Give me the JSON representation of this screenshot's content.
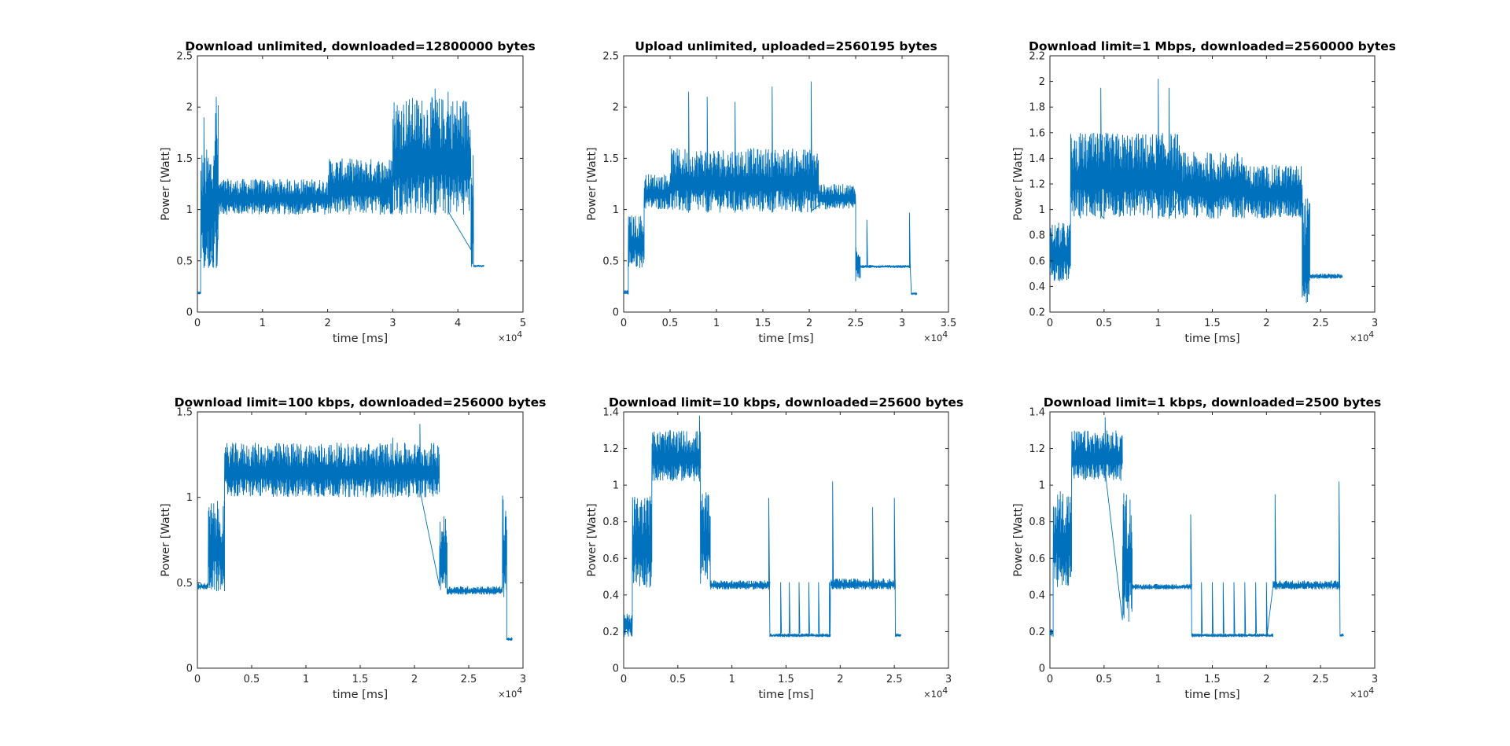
{
  "figure": {
    "background": "#ffffff",
    "line_color": "#0072BD"
  },
  "chart_data": [
    {
      "type": "line",
      "title": "Download unlimited, downloaded=12800000 bytes",
      "xlabel": "time [ms]",
      "ylabel": "Power [Watt]",
      "x_exponent": "4",
      "xlim": [
        0,
        50000
      ],
      "ylim": [
        0,
        2.5
      ],
      "xticks": [
        0,
        10000,
        20000,
        30000,
        40000,
        50000
      ],
      "xtick_labels": [
        "0",
        "1",
        "2",
        "3",
        "4",
        "5"
      ],
      "yticks": [
        0,
        0.5,
        1,
        1.5,
        2,
        2.5
      ],
      "ytick_labels": [
        "0",
        "0.5",
        "1",
        "1.5",
        "2",
        "2.5"
      ],
      "grid": false,
      "segments": [
        {
          "from": 0,
          "to": 500,
          "low": 0.17,
          "high": 0.2
        },
        {
          "from": 500,
          "to": 2500,
          "low": 0.43,
          "high": 1.6,
          "spikes": [
            [
              1000,
              1.9
            ],
            [
              1700,
              1.3
            ]
          ]
        },
        {
          "from": 2500,
          "to": 3200,
          "low": 0.43,
          "high": 2.05,
          "spikes": [
            [
              2900,
              2.1
            ]
          ]
        },
        {
          "from": 3200,
          "to": 20000,
          "low": 0.95,
          "high": 1.3
        },
        {
          "from": 20000,
          "to": 30000,
          "low": 0.95,
          "high": 1.5
        },
        {
          "from": 30000,
          "to": 42000,
          "low": 0.95,
          "high": 2.1,
          "spikes": [
            [
              36500,
              2.18
            ],
            [
              38500,
              2.15
            ]
          ]
        },
        {
          "from": 42000,
          "to": 42400,
          "low": 0.44,
          "high": 1.55
        },
        {
          "from": 42400,
          "to": 44000,
          "low": 0.44,
          "high": 0.46
        }
      ]
    },
    {
      "type": "line",
      "title": "Upload unlimited, uploaded=2560195 bytes",
      "xlabel": "time [ms]",
      "ylabel": "Power [Watt]",
      "x_exponent": "4",
      "xlim": [
        0,
        35000
      ],
      "ylim": [
        0,
        2.5
      ],
      "xticks": [
        0,
        5000,
        10000,
        15000,
        20000,
        25000,
        30000,
        35000
      ],
      "xtick_labels": [
        "0",
        "0.5",
        "1",
        "1.5",
        "2",
        "2.5",
        "3",
        "3.5"
      ],
      "yticks": [
        0,
        0.5,
        1,
        1.5,
        2,
        2.5
      ],
      "ytick_labels": [
        "0",
        "0.5",
        "1",
        "1.5",
        "2",
        "2.5"
      ],
      "grid": false,
      "segments": [
        {
          "from": 0,
          "to": 500,
          "low": 0.17,
          "high": 0.22
        },
        {
          "from": 500,
          "to": 2200,
          "low": 0.43,
          "high": 0.95
        },
        {
          "from": 2200,
          "to": 5000,
          "low": 1.0,
          "high": 1.35
        },
        {
          "from": 5000,
          "to": 21000,
          "low": 0.97,
          "high": 1.6,
          "spikes": [
            [
              7000,
              2.15
            ],
            [
              9000,
              2.1
            ],
            [
              12000,
              2.05
            ],
            [
              16000,
              2.2
            ],
            [
              20200,
              2.25
            ]
          ]
        },
        {
          "from": 21000,
          "to": 25000,
          "low": 1.0,
          "high": 1.25
        },
        {
          "from": 25000,
          "to": 25500,
          "low": 0.3,
          "high": 0.7
        },
        {
          "from": 25500,
          "to": 30900,
          "low": 0.43,
          "high": 0.46,
          "spikes": [
            [
              26200,
              0.9
            ],
            [
              30800,
              0.97
            ]
          ]
        },
        {
          "from": 31000,
          "to": 31600,
          "low": 0.17,
          "high": 0.19
        }
      ]
    },
    {
      "type": "line",
      "title": "Download limit=1 Mbps, downloaded=2560000 bytes",
      "xlabel": "time [ms]",
      "ylabel": "Power [Watt]",
      "x_exponent": "4",
      "xlim": [
        0,
        30000
      ],
      "ylim": [
        0.2,
        2.2
      ],
      "xticks": [
        0,
        5000,
        10000,
        15000,
        20000,
        25000,
        30000
      ],
      "xtick_labels": [
        "0",
        "0.5",
        "1",
        "1.5",
        "2",
        "2.5",
        "3"
      ],
      "yticks": [
        0.2,
        0.4,
        0.6,
        0.8,
        1,
        1.2,
        1.4,
        1.6,
        1.8,
        2,
        2.2
      ],
      "ytick_labels": [
        "0.2",
        "0.4",
        "0.6",
        "0.8",
        "1",
        "1.2",
        "1.4",
        "1.6",
        "1.8",
        "2",
        "2.2"
      ],
      "grid": false,
      "segments": [
        {
          "from": 0,
          "to": 1900,
          "low": 0.44,
          "high": 0.9
        },
        {
          "from": 1900,
          "to": 5000,
          "low": 0.93,
          "high": 1.6,
          "spikes": [
            [
              4700,
              1.95
            ]
          ]
        },
        {
          "from": 5000,
          "to": 12000,
          "low": 0.93,
          "high": 1.6,
          "spikes": [
            [
              10000,
              2.02
            ],
            [
              11000,
              1.95
            ]
          ]
        },
        {
          "from": 12000,
          "to": 18000,
          "low": 0.93,
          "high": 1.45
        },
        {
          "from": 18000,
          "to": 23300,
          "low": 0.93,
          "high": 1.35
        },
        {
          "from": 23300,
          "to": 24000,
          "low": 0.22,
          "high": 1.1
        },
        {
          "from": 24000,
          "to": 27000,
          "low": 0.46,
          "high": 0.5
        }
      ]
    },
    {
      "type": "line",
      "title": "Download limit=100 kbps, downloaded=256000 bytes",
      "xlabel": "time [ms]",
      "ylabel": "Power [Watt]",
      "x_exponent": "4",
      "xlim": [
        0,
        30000
      ],
      "ylim": [
        0,
        1.5
      ],
      "xticks": [
        0,
        5000,
        10000,
        15000,
        20000,
        25000,
        30000
      ],
      "xtick_labels": [
        "0",
        "0.5",
        "1",
        "1.5",
        "2",
        "2.5",
        "3"
      ],
      "yticks": [
        0,
        0.5,
        1,
        1.5
      ],
      "ytick_labels": [
        "0",
        "0.5",
        "1",
        "1.5"
      ],
      "grid": false,
      "segments": [
        {
          "from": 0,
          "to": 1000,
          "low": 0.46,
          "high": 0.5
        },
        {
          "from": 1000,
          "to": 2500,
          "low": 0.44,
          "high": 0.98
        },
        {
          "from": 2500,
          "to": 22300,
          "low": 1.0,
          "high": 1.32,
          "spikes": [
            [
              18000,
              1.35
            ],
            [
              20500,
              1.43
            ]
          ]
        },
        {
          "from": 22300,
          "to": 23000,
          "low": 0.45,
          "high": 0.9
        },
        {
          "from": 23000,
          "to": 28100,
          "low": 0.43,
          "high": 0.48
        },
        {
          "from": 28100,
          "to": 28500,
          "low": 0.4,
          "high": 1.02
        },
        {
          "from": 28500,
          "to": 29000,
          "low": 0.16,
          "high": 0.18
        }
      ]
    },
    {
      "type": "line",
      "title": "Download limit=10 kbps, downloaded=25600 bytes",
      "xlabel": "time [ms]",
      "ylabel": "Power [Watt]",
      "x_exponent": "4",
      "xlim": [
        0,
        30000
      ],
      "ylim": [
        0,
        1.4
      ],
      "xticks": [
        0,
        5000,
        10000,
        15000,
        20000,
        25000,
        30000
      ],
      "xtick_labels": [
        "0",
        "0.5",
        "1",
        "1.5",
        "2",
        "2.5",
        "3"
      ],
      "yticks": [
        0,
        0.2,
        0.4,
        0.6,
        0.8,
        1,
        1.2,
        1.4
      ],
      "ytick_labels": [
        "0",
        "0.2",
        "0.4",
        "0.6",
        "0.8",
        "1",
        "1.2",
        "1.4"
      ],
      "grid": false,
      "segments": [
        {
          "from": 0,
          "to": 800,
          "low": 0.17,
          "high": 0.3
        },
        {
          "from": 800,
          "to": 2600,
          "low": 0.44,
          "high": 0.95
        },
        {
          "from": 2600,
          "to": 7100,
          "low": 1.02,
          "high": 1.3,
          "spikes": [
            [
              7000,
              1.38
            ]
          ]
        },
        {
          "from": 7100,
          "to": 8000,
          "low": 0.45,
          "high": 0.97
        },
        {
          "from": 8000,
          "to": 13500,
          "low": 0.43,
          "high": 0.48,
          "spikes": [
            [
              13400,
              0.93
            ]
          ]
        },
        {
          "from": 13500,
          "to": 19100,
          "low": 0.17,
          "high": 0.19,
          "spikes": [
            [
              14500,
              0.47
            ],
            [
              15300,
              0.47
            ],
            [
              16200,
              0.47
            ],
            [
              17100,
              0.47
            ],
            [
              18000,
              0.47
            ],
            [
              19000,
              0.47
            ]
          ]
        },
        {
          "from": 19100,
          "to": 25100,
          "low": 0.43,
          "high": 0.49,
          "spikes": [
            [
              19300,
              1.02
            ],
            [
              23000,
              0.88
            ],
            [
              25000,
              0.93
            ]
          ]
        },
        {
          "from": 25100,
          "to": 25600,
          "low": 0.17,
          "high": 0.19
        }
      ]
    },
    {
      "type": "line",
      "title": "Download limit=1 kbps, downloaded=2500 bytes",
      "xlabel": "time [ms]",
      "ylabel": "Power [Watt]",
      "x_exponent": "4",
      "xlim": [
        0,
        30000
      ],
      "ylim": [
        0,
        1.4
      ],
      "xticks": [
        0,
        5000,
        10000,
        15000,
        20000,
        25000,
        30000
      ],
      "xtick_labels": [
        "0",
        "0.5",
        "1",
        "1.5",
        "2",
        "2.5",
        "3"
      ],
      "yticks": [
        0,
        0.2,
        0.4,
        0.6,
        0.8,
        1,
        1.2,
        1.4
      ],
      "ytick_labels": [
        "0",
        "0.2",
        "0.4",
        "0.6",
        "0.8",
        "1",
        "1.2",
        "1.4"
      ],
      "grid": false,
      "segments": [
        {
          "from": 0,
          "to": 300,
          "low": 0.17,
          "high": 0.22
        },
        {
          "from": 300,
          "to": 2000,
          "low": 0.44,
          "high": 0.98
        },
        {
          "from": 2000,
          "to": 6700,
          "low": 1.02,
          "high": 1.3,
          "spikes": [
            [
              5100,
              1.37
            ]
          ]
        },
        {
          "from": 6700,
          "to": 7600,
          "low": 0.25,
          "high": 0.97
        },
        {
          "from": 7600,
          "to": 13100,
          "low": 0.43,
          "high": 0.46,
          "spikes": [
            [
              13000,
              0.84
            ]
          ]
        },
        {
          "from": 13100,
          "to": 20600,
          "low": 0.17,
          "high": 0.19,
          "spikes": [
            [
              14000,
              0.47
            ],
            [
              15000,
              0.47
            ],
            [
              16000,
              0.47
            ],
            [
              17000,
              0.47
            ],
            [
              18000,
              0.47
            ],
            [
              19000,
              0.47
            ],
            [
              20000,
              0.47
            ]
          ]
        },
        {
          "from": 20600,
          "to": 26800,
          "low": 0.43,
          "high": 0.48,
          "spikes": [
            [
              20800,
              0.95
            ],
            [
              26700,
              1.02
            ]
          ]
        },
        {
          "from": 26800,
          "to": 27100,
          "low": 0.17,
          "high": 0.19
        }
      ]
    }
  ]
}
